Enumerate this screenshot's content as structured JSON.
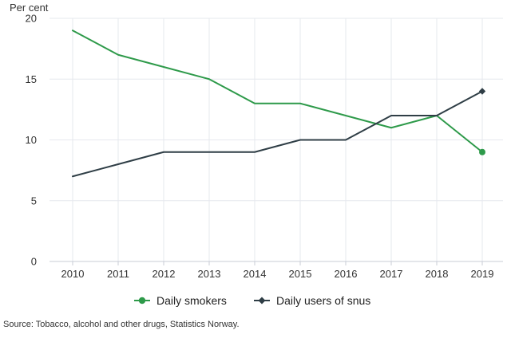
{
  "chart_data": {
    "type": "line",
    "title": "",
    "ylabel": "Per cent",
    "xlabel": "",
    "categories": [
      "2010",
      "2011",
      "2012",
      "2013",
      "2014",
      "2015",
      "2016",
      "2017",
      "2018",
      "2019"
    ],
    "ylim": [
      0,
      20
    ],
    "yticks": [
      0,
      5,
      10,
      15,
      20
    ],
    "grid": true,
    "legend_position": "bottom",
    "series": [
      {
        "name": "Daily smokers",
        "color": "#2e9a4a",
        "marker": "circle",
        "values": [
          19,
          17,
          16,
          15,
          13,
          13,
          12,
          11,
          12,
          9
        ]
      },
      {
        "name": "Daily users of snus",
        "color": "#2f3e46",
        "marker": "diamond",
        "values": [
          7,
          8,
          9,
          9,
          9,
          10,
          10,
          12,
          12,
          14
        ]
      }
    ]
  },
  "source": "Source: Tobacco, alcohol and other drugs, Statistics Norway."
}
